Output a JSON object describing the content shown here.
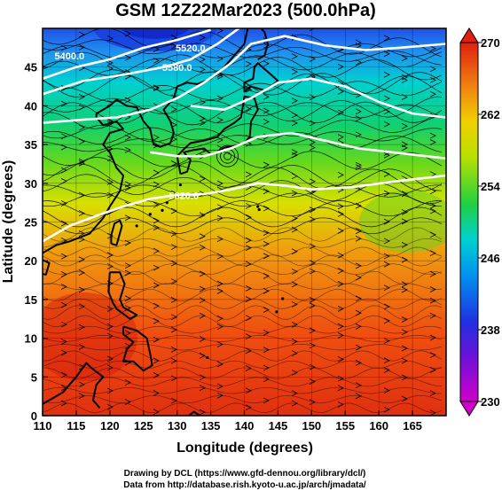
{
  "chart_data": {
    "type": "heatmap",
    "title": "GSM 12Z22Mar2023 (500.0hPa)",
    "xlabel": "Longitude (degrees)",
    "ylabel": "Latitude (degrees)",
    "xlim": [
      110,
      170
    ],
    "ylim": [
      0,
      50
    ],
    "x_ticks": [
      "110",
      "115",
      "120",
      "125",
      "130",
      "135",
      "140",
      "145",
      "150",
      "155",
      "160",
      "165"
    ],
    "y_ticks": [
      "0",
      "5",
      "10",
      "15",
      "20",
      "25",
      "30",
      "35",
      "40",
      "45"
    ],
    "colorbar": {
      "min": 230,
      "max": 270,
      "ticks": [
        "230",
        "238",
        "246",
        "254",
        "262",
        "270"
      ],
      "colors": [
        "#d000c8",
        "#3040e0",
        "#00b8f0",
        "#20d040",
        "#e8e800",
        "#e03010"
      ]
    },
    "contour_labels": [
      {
        "text": "5400.0",
        "lon": 114,
        "lat": 46
      },
      {
        "text": "5520.0",
        "lon": 132,
        "lat": 47
      },
      {
        "text": "5580.0",
        "lon": 130,
        "lat": 44.5
      },
      {
        "text": "5820.0",
        "lon": 131,
        "lat": 28
      }
    ],
    "temperature_bands_by_latitude": [
      {
        "lat": 0,
        "value": 268
      },
      {
        "lat": 10,
        "value": 267
      },
      {
        "lat": 20,
        "value": 264
      },
      {
        "lat": 27,
        "value": 260
      },
      {
        "lat": 33,
        "value": 255
      },
      {
        "lat": 38,
        "value": 251
      },
      {
        "lat": 43,
        "value": 246
      },
      {
        "lat": 47,
        "value": 241
      },
      {
        "lat": 50,
        "value": 237
      }
    ]
  },
  "credits": {
    "line1": "Drawing by DCL (https://www.gfd-dennou.org/library/dcl/)",
    "line2": "Data from http://database.rish.kyoto-u.ac.jp/arch/jmadata/"
  }
}
